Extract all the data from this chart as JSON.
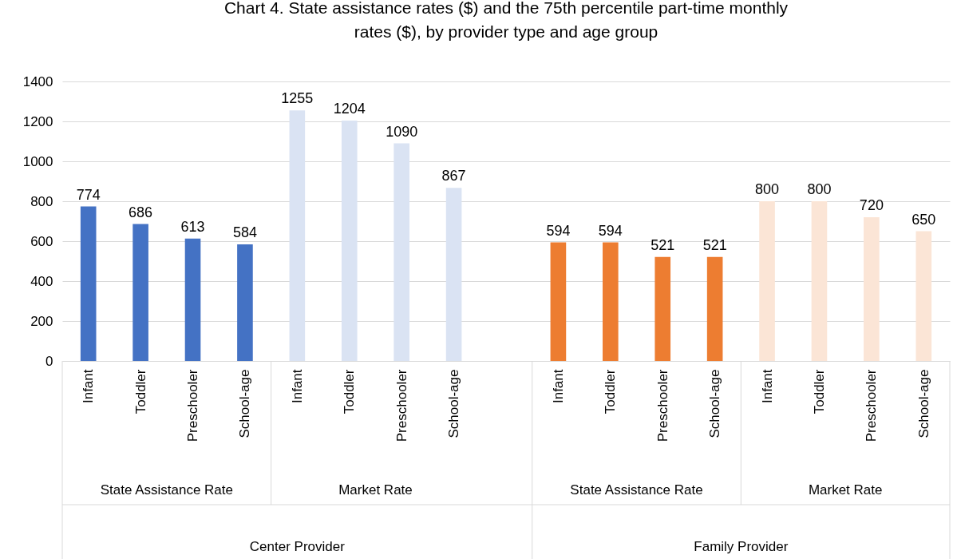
{
  "chart_data": {
    "type": "bar",
    "title": "Chart 4. State assistance rates ($) and the 75th percentile part-time monthly rates ($), by provider type and age group",
    "categories": [
      "Infant",
      "Toddler",
      "Preschooler",
      "School-age",
      "Infant",
      "Toddler",
      "Preschooler",
      "School-age",
      null,
      "Infant",
      "Toddler",
      "Preschooler",
      "School-age",
      "Infant",
      "Toddler",
      "Preschooler",
      "School-age"
    ],
    "series": [
      {
        "color": "#4472c4",
        "values": [
          774,
          686,
          613,
          584,
          null,
          null,
          null,
          null,
          null,
          null,
          null,
          null,
          null,
          null,
          null,
          null,
          null
        ]
      },
      {
        "color": "#dae3f3",
        "values": [
          null,
          null,
          null,
          null,
          1255,
          1204,
          1090,
          867,
          null,
          null,
          null,
          null,
          null,
          null,
          null,
          null,
          null
        ]
      },
      {
        "color": "#ed7d31",
        "values": [
          null,
          null,
          null,
          null,
          null,
          null,
          null,
          null,
          null,
          594,
          594,
          521,
          521,
          null,
          null,
          null,
          null
        ]
      },
      {
        "color": "#fbe5d6",
        "values": [
          null,
          null,
          null,
          null,
          null,
          null,
          null,
          null,
          null,
          null,
          null,
          null,
          null,
          800,
          800,
          720,
          650
        ]
      }
    ],
    "annotations": [
      "State Assistance Rate",
      "Market Rate",
      "State Assistance Rate",
      "Market Rate",
      "Center Provider",
      "Family Provider"
    ],
    "ylim": [
      0,
      1400
    ],
    "yticks": [
      0,
      200,
      400,
      600,
      800,
      1000,
      1200,
      1400
    ],
    "grid": "y",
    "data_labels": true
  }
}
